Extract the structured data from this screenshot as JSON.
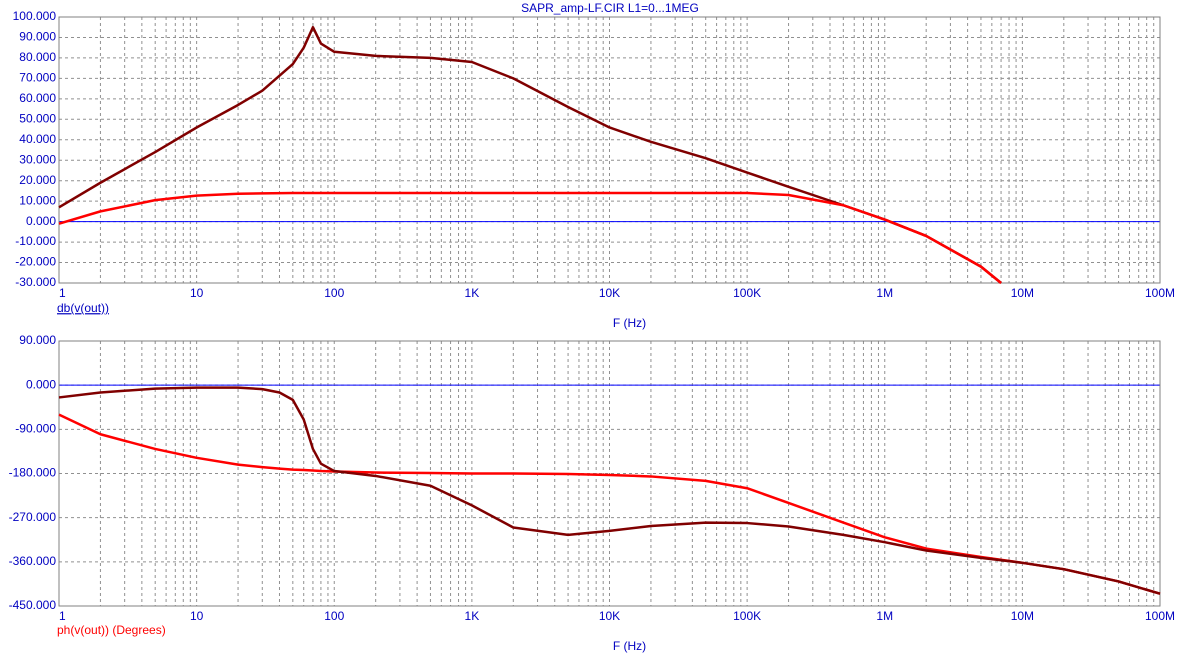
{
  "title": "SAPR_amp-LF.CIR L1=0...1MEG",
  "chart_data": [
    {
      "type": "line",
      "ylabel": "db(v(out))",
      "xlabel": "F (Hz)",
      "log_x": true,
      "grid": true,
      "xlim": [
        1,
        100000000
      ],
      "xticks": [
        1,
        10,
        100,
        {
          "value": 1000,
          "label": "1K"
        },
        {
          "value": 10000,
          "label": "10K"
        },
        {
          "value": 100000,
          "label": "100K"
        },
        {
          "value": 1000000,
          "label": "1M"
        },
        {
          "value": 10000000,
          "label": "10M"
        },
        {
          "value": 100000000,
          "label": "100M"
        }
      ],
      "ylim": [
        -30,
        100
      ],
      "yticks": [
        {
          "value": -30,
          "label": "-30.000"
        },
        {
          "value": -20,
          "label": "-20.000"
        },
        {
          "value": -10,
          "label": "-10.000"
        },
        {
          "value": 0,
          "label": "0.000"
        },
        {
          "value": 10,
          "label": "10.000"
        },
        {
          "value": 20,
          "label": "20.000"
        },
        {
          "value": 30,
          "label": "30.000"
        },
        {
          "value": 40,
          "label": "40.000"
        },
        {
          "value": 50,
          "label": "50.000"
        },
        {
          "value": 60,
          "label": "60.000"
        },
        {
          "value": 70,
          "label": "70.000"
        },
        {
          "value": 80,
          "label": "80.000"
        },
        {
          "value": 90,
          "label": "90.000"
        },
        {
          "value": 100,
          "label": "100.000"
        }
      ],
      "x": [
        1,
        2,
        5,
        10,
        20,
        30,
        50,
        60,
        70,
        80,
        100,
        200,
        500,
        1000,
        2000,
        5000,
        10000,
        20000,
        50000,
        100000,
        200000,
        500000,
        1000000,
        2000000,
        5000000,
        7000000
      ],
      "series": [
        {
          "color": "#800000",
          "values": [
            7,
            19,
            34,
            46,
            57,
            64,
            77,
            85,
            95,
            87,
            83,
            81,
            80,
            78,
            70,
            56,
            46,
            39,
            31,
            24,
            17,
            8,
            1,
            -7,
            -22,
            -30
          ]
        },
        {
          "color": "#ff0000",
          "values": [
            -1,
            5,
            10.5,
            12.7,
            13.6,
            13.8,
            14,
            14,
            14,
            14,
            14,
            14,
            14,
            14,
            14,
            14,
            14,
            14,
            14,
            14,
            13,
            8,
            1,
            -7,
            -22,
            -30
          ]
        }
      ]
    },
    {
      "type": "line",
      "ylabel": "ph(v(out)) (Degrees)",
      "xlabel": "F (Hz)",
      "log_x": true,
      "grid": true,
      "xlim": [
        1,
        100000000
      ],
      "xticks": [
        1,
        10,
        100,
        {
          "value": 1000,
          "label": "1K"
        },
        {
          "value": 10000,
          "label": "10K"
        },
        {
          "value": 100000,
          "label": "100K"
        },
        {
          "value": 1000000,
          "label": "1M"
        },
        {
          "value": 10000000,
          "label": "10M"
        },
        {
          "value": 100000000,
          "label": "100M"
        }
      ],
      "ylim": [
        -450,
        90
      ],
      "yticks": [
        {
          "value": -450,
          "label": "-450.000"
        },
        {
          "value": -360,
          "label": "-360.000"
        },
        {
          "value": -270,
          "label": "-270.000"
        },
        {
          "value": -180,
          "label": "-180.000"
        },
        {
          "value": -90,
          "label": "-90.000"
        },
        {
          "value": 0,
          "label": "0.000"
        },
        {
          "value": 90,
          "label": "90.000"
        }
      ],
      "x": [
        1,
        2,
        5,
        10,
        20,
        30,
        40,
        50,
        60,
        70,
        80,
        100,
        200,
        500,
        1000,
        2000,
        5000,
        10000,
        20000,
        50000,
        100000,
        200000,
        500000,
        1000000,
        2000000,
        5000000,
        10000000,
        20000000,
        50000000,
        100000000
      ],
      "series": [
        {
          "color": "#ff0000",
          "values": [
            -60,
            -100,
            -130,
            -148,
            -162,
            -167,
            -170,
            -172,
            -173,
            -174,
            -175,
            -176,
            -178,
            -179,
            -180,
            -180,
            -181,
            -183,
            -186,
            -195,
            -210,
            -240,
            -280,
            -310,
            -333,
            -350,
            -362,
            -375,
            -400,
            -425
          ]
        },
        {
          "color": "#800000",
          "values": [
            -25,
            -15,
            -7,
            -5,
            -5,
            -8,
            -15,
            -30,
            -70,
            -130,
            -160,
            -175,
            -185,
            -205,
            -245,
            -290,
            -305,
            -297,
            -287,
            -280,
            -281,
            -288,
            -305,
            -320,
            -337,
            -352,
            -362,
            -375,
            -400,
            -425
          ]
        }
      ]
    }
  ]
}
